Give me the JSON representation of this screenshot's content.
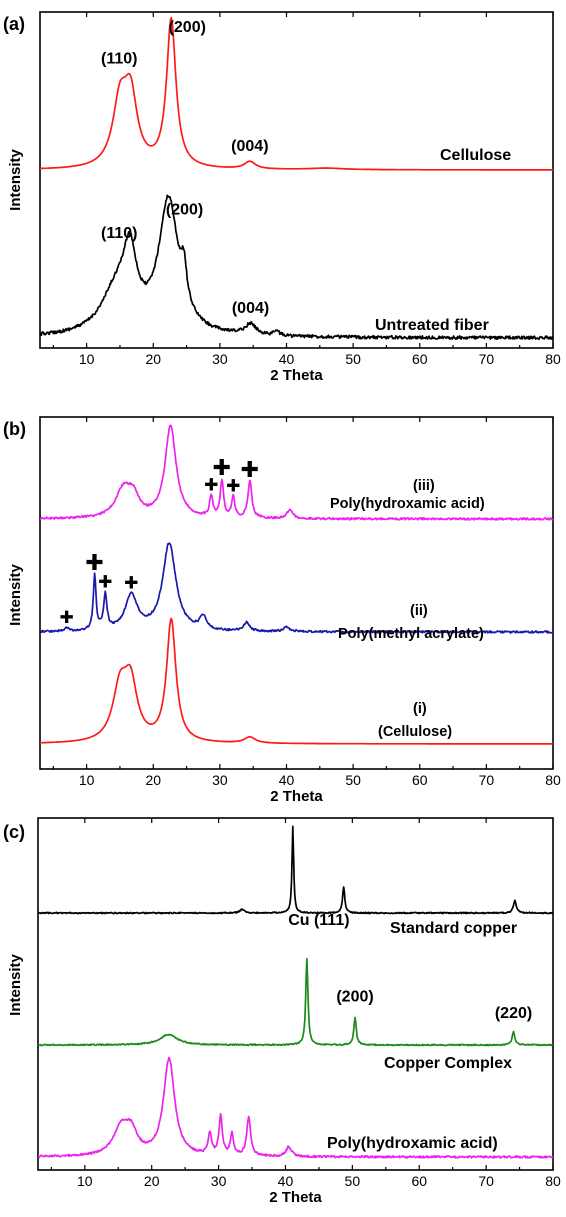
{
  "chart_data": [
    {
      "panel": "(a)",
      "type": "line",
      "xlabel": "2 Theta",
      "ylabel": "Intensity",
      "xlim": [
        3,
        80
      ],
      "xticks": [
        10,
        20,
        30,
        40,
        50,
        60,
        70,
        80
      ],
      "series": [
        {
          "name": "Cellulose",
          "color": "#ff1a1a",
          "peaks": [
            {
              "center": 15.0,
              "height": 0.42,
              "width": 1.3
            },
            {
              "center": 16.6,
              "height": 0.45,
              "width": 1.2
            },
            {
              "center": 22.7,
              "height": 1.0,
              "width": 0.85
            },
            {
              "center": 34.5,
              "height": 0.05,
              "width": 1.0
            },
            {
              "center": 46.0,
              "height": 0.01,
              "width": 3.0
            }
          ],
          "annotations": [
            {
              "text": "(110)",
              "x": 15.5
            },
            {
              "text": "(200)",
              "x": 22.7
            },
            {
              "text": "(004)",
              "x": 34.5
            }
          ]
        },
        {
          "name": "Untreated fiber",
          "color": "#000000",
          "peaks": [
            {
              "center": 14.5,
              "height": 0.28,
              "width": 2.8
            },
            {
              "center": 16.5,
              "height": 0.42,
              "width": 1.2
            },
            {
              "center": 22.3,
              "height": 0.86,
              "width": 1.8
            },
            {
              "center": 24.6,
              "height": 0.22,
              "width": 0.5
            },
            {
              "center": 34.6,
              "height": 0.07,
              "width": 1.0
            },
            {
              "center": 38.5,
              "height": 0.03,
              "width": 0.5
            }
          ],
          "annotations": [
            {
              "text": "(110)",
              "x": 15.5
            },
            {
              "text": "(200)",
              "x": 22.3
            },
            {
              "text": "(004)",
              "x": 34.6
            }
          ]
        }
      ]
    },
    {
      "panel": "(b)",
      "type": "line",
      "xlabel": "2 Theta",
      "ylabel": "Intensity",
      "xlim": [
        3,
        80
      ],
      "xticks": [
        10,
        20,
        30,
        40,
        50,
        60,
        70,
        80
      ],
      "series": [
        {
          "name": "(iii)\nPoly(hydroxamic acid)",
          "label_line1": "(iii)",
          "label_line2": "Poly(hydroxamic acid)",
          "color": "#ee22ee",
          "peaks": [
            {
              "center": 15.5,
              "height": 0.3,
              "width": 1.4
            },
            {
              "center": 17.0,
              "height": 0.2,
              "width": 1.0
            },
            {
              "center": 22.6,
              "height": 1.0,
              "width": 1.0
            },
            {
              "center": 28.7,
              "height": 0.22,
              "width": 0.3
            },
            {
              "center": 30.3,
              "height": 0.4,
              "width": 0.3
            },
            {
              "center": 32.0,
              "height": 0.22,
              "width": 0.3
            },
            {
              "center": 34.5,
              "height": 0.4,
              "width": 0.35
            },
            {
              "center": 40.5,
              "height": 0.1,
              "width": 0.5
            }
          ],
          "markers": [
            28.7,
            30.3,
            32.0,
            34.5
          ]
        },
        {
          "name": "(ii)\nPoly(methyl acrylate)",
          "label_line1": "(ii)",
          "label_line2": "Poly(methyl acrylate)",
          "color": "#1a1aaa",
          "peaks": [
            {
              "center": 7.0,
              "height": 0.04,
              "width": 0.3
            },
            {
              "center": 11.2,
              "height": 0.62,
              "width": 0.25
            },
            {
              "center": 12.8,
              "height": 0.4,
              "width": 0.3
            },
            {
              "center": 16.7,
              "height": 0.4,
              "width": 1.1
            },
            {
              "center": 22.4,
              "height": 1.0,
              "width": 1.2
            },
            {
              "center": 27.5,
              "height": 0.15,
              "width": 0.6
            },
            {
              "center": 34.0,
              "height": 0.1,
              "width": 0.5
            },
            {
              "center": 40.0,
              "height": 0.05,
              "width": 0.6
            }
          ],
          "markers": [
            7.0,
            11.2,
            12.8,
            16.7
          ]
        },
        {
          "name": "(i)\n(Cellulose)",
          "label_line1": "(i)",
          "label_line2": "(Cellulose)",
          "color": "#ff1a1a",
          "peaks": [
            {
              "center": 15.0,
              "height": 0.42,
              "width": 1.3
            },
            {
              "center": 16.6,
              "height": 0.45,
              "width": 1.2
            },
            {
              "center": 22.7,
              "height": 1.0,
              "width": 0.85
            },
            {
              "center": 34.5,
              "height": 0.05,
              "width": 1.0
            }
          ]
        }
      ]
    },
    {
      "panel": "(c)",
      "type": "line",
      "xlabel": "2 Theta",
      "ylabel": "Intensity",
      "xlim": [
        3,
        80
      ],
      "xticks": [
        10,
        20,
        30,
        40,
        50,
        60,
        70,
        80
      ],
      "series": [
        {
          "name": "Standard copper",
          "color": "#000000",
          "peaks": [
            {
              "center": 33.5,
              "height": 0.04,
              "width": 0.4
            },
            {
              "center": 41.1,
              "height": 1.0,
              "width": 0.15
            },
            {
              "center": 48.7,
              "height": 0.3,
              "width": 0.2
            },
            {
              "center": 74.3,
              "height": 0.15,
              "width": 0.25
            }
          ]
        },
        {
          "name": "Copper Complex",
          "color": "#1a8a1a",
          "peaks": [
            {
              "center": 22.5,
              "height": 0.12,
              "width": 1.6
            },
            {
              "center": 43.2,
              "height": 1.0,
              "width": 0.2
            },
            {
              "center": 50.4,
              "height": 0.32,
              "width": 0.22
            },
            {
              "center": 74.1,
              "height": 0.15,
              "width": 0.25
            }
          ],
          "annotations": [
            {
              "text": "Cu (111)",
              "x": 43.2
            },
            {
              "text": "(200)",
              "x": 50.4
            },
            {
              "text": "(220)",
              "x": 74.1
            }
          ]
        },
        {
          "name": "Poly(hydroxamic acid)",
          "color": "#ee22ee",
          "peaks": [
            {
              "center": 15.5,
              "height": 0.3,
              "width": 1.4
            },
            {
              "center": 17.0,
              "height": 0.2,
              "width": 1.0
            },
            {
              "center": 22.6,
              "height": 1.0,
              "width": 1.0
            },
            {
              "center": 28.7,
              "height": 0.22,
              "width": 0.3
            },
            {
              "center": 30.3,
              "height": 0.4,
              "width": 0.3
            },
            {
              "center": 32.0,
              "height": 0.22,
              "width": 0.3
            },
            {
              "center": 34.5,
              "height": 0.4,
              "width": 0.35
            },
            {
              "center": 40.5,
              "height": 0.1,
              "width": 0.5
            }
          ]
        }
      ]
    }
  ]
}
